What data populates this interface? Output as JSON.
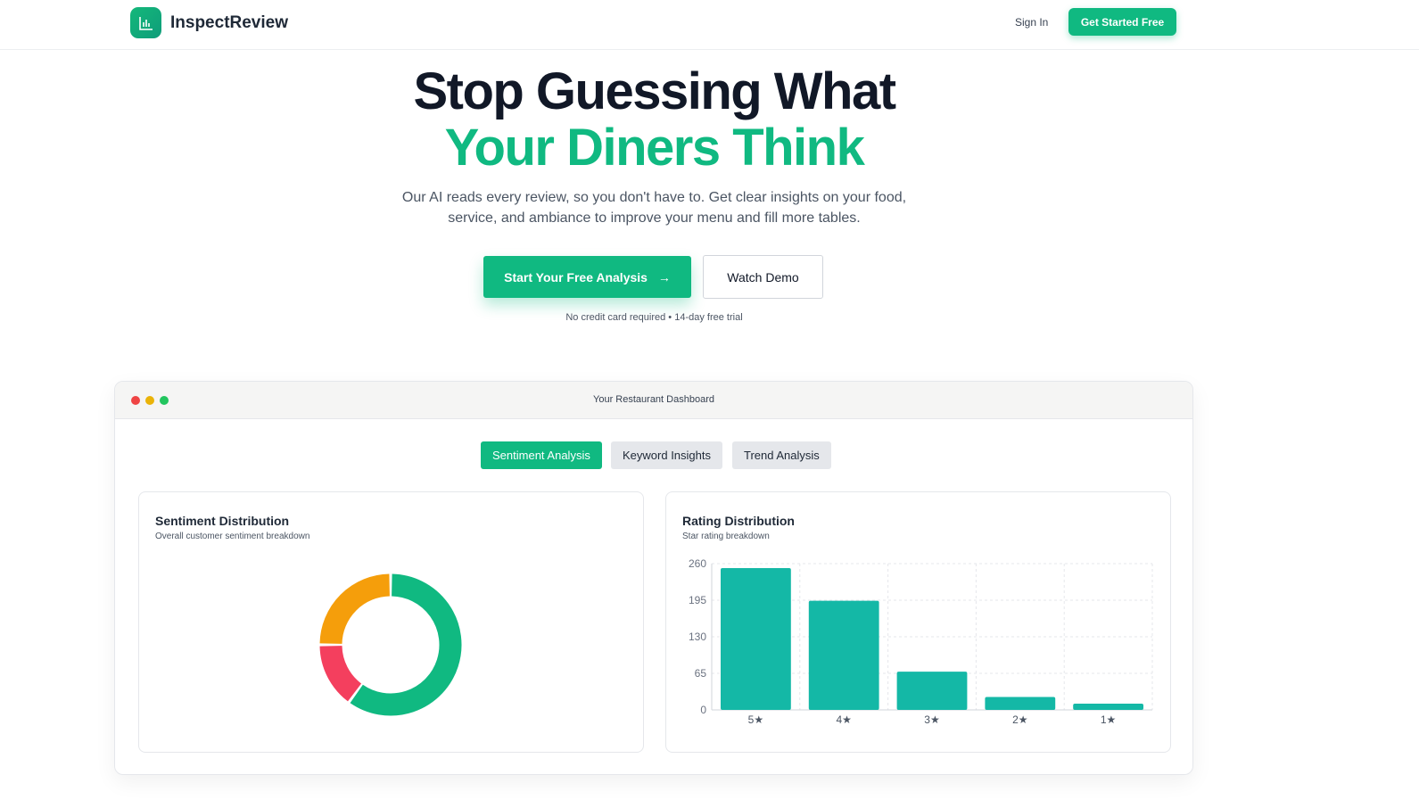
{
  "nav": {
    "brand": "InspectReview",
    "logo_icon": "bar-chart-icon",
    "sign_in": "Sign In",
    "get_started": "Get Started Free"
  },
  "hero": {
    "title_line1": "Stop Guessing What",
    "title_line2": "Your Diners Think",
    "subtitle_line1": "Our AI reads every review, so you don't have to. Get clear insights on your food,",
    "subtitle_line2": "service, and ambiance to improve your menu and fill more tables.",
    "cta": "Start Your Free Analysis",
    "cta_icon": "arrow-right-icon",
    "demo": "Watch Demo",
    "note": "No credit card required • 14-day free trial"
  },
  "dashboard": {
    "title": "Your Restaurant Dashboard",
    "tabs": [
      {
        "label": "Sentiment Analysis",
        "active": true
      },
      {
        "label": "Keyword Insights",
        "active": false
      },
      {
        "label": "Trend Analysis",
        "active": false
      }
    ]
  },
  "colors": {
    "accent": "#10b981",
    "positive": "#10b981",
    "negative": "#f43f5e",
    "neutral": "#f59e0b",
    "bar": "#14b8a6"
  },
  "chart_data": [
    {
      "type": "pie",
      "donut": true,
      "title": "Sentiment Distribution",
      "subtitle": "Overall customer sentiment breakdown",
      "slices": [
        {
          "value": 60,
          "color": "#10b981"
        },
        {
          "value": 15,
          "color": "#f43f5e"
        },
        {
          "value": 25,
          "color": "#f59e0b"
        }
      ]
    },
    {
      "type": "bar",
      "title": "Rating Distribution",
      "subtitle": "Star rating breakdown",
      "categories": [
        "5★",
        "4★",
        "3★",
        "2★",
        "1★"
      ],
      "values": [
        252,
        194,
        68,
        23,
        11
      ],
      "ylim": [
        0,
        260
      ],
      "yticks": [
        "0",
        "65",
        "130",
        "195",
        "260"
      ],
      "grid": true
    }
  ]
}
